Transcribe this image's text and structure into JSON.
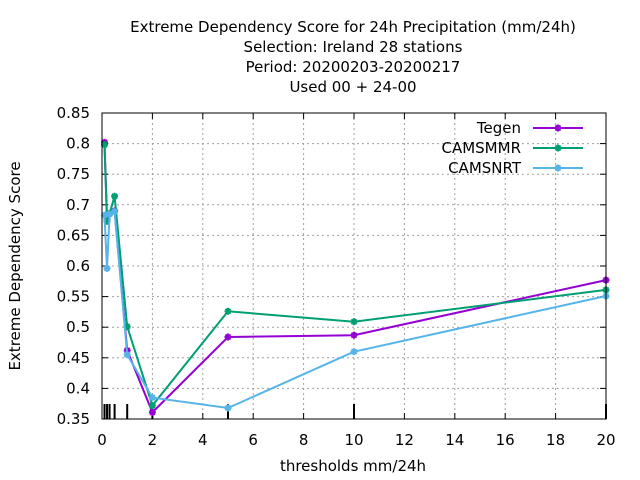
{
  "chart_data": {
    "type": "line",
    "title_lines": [
      "Extreme Dependency Score  for 24h Precipitation (mm/24h)",
      "Selection: Ireland      28 stations",
      "Period: 20200203-20200217",
      "Used  00 + 24-00"
    ],
    "xlabel": "thresholds mm/24h",
    "ylabel": "Extreme Dependency Score",
    "xlim": [
      0,
      20
    ],
    "ylim": [
      0.35,
      0.85
    ],
    "xticks": [
      0,
      2,
      4,
      6,
      8,
      10,
      12,
      14,
      16,
      18,
      20
    ],
    "yticks": [
      0.35,
      0.4,
      0.45,
      0.5,
      0.55,
      0.6,
      0.65,
      0.7,
      0.75,
      0.8,
      0.85
    ],
    "grid": true,
    "legend_position": "top-right",
    "threshold_marks": [
      0.1,
      0.2,
      0.3,
      0.5,
      1,
      2,
      5,
      10,
      20
    ],
    "series": [
      {
        "name": "Tegen",
        "color": "#9400d3",
        "x": [
          0.1,
          0.2,
          0.3,
          0.5,
          1,
          2,
          5,
          10,
          20
        ],
        "y": [
          0.802,
          0.677,
          0.685,
          0.69,
          0.462,
          0.361,
          0.484,
          0.487,
          0.577
        ]
      },
      {
        "name": "CAMSMMR",
        "color": "#009e73",
        "x": [
          0.1,
          0.2,
          0.3,
          0.5,
          1,
          2,
          5,
          10,
          20
        ],
        "y": [
          0.798,
          0.673,
          0.686,
          0.714,
          0.501,
          0.372,
          0.526,
          0.509,
          0.561
        ]
      },
      {
        "name": "CAMSNRT",
        "color": "#56b4e9",
        "x": [
          0.1,
          0.2,
          0.3,
          0.5,
          1,
          2,
          5,
          10,
          20
        ],
        "y": [
          0.683,
          0.596,
          0.685,
          0.689,
          0.455,
          0.385,
          0.368,
          0.46,
          0.551
        ]
      }
    ]
  }
}
